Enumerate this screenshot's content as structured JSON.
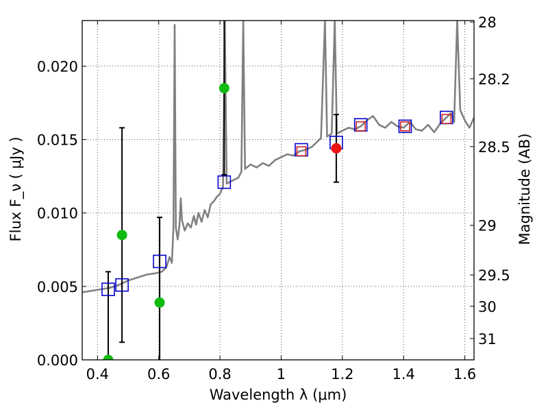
{
  "chart_data": {
    "type": "scatter",
    "xlabel": "Wavelength  λ (μm)",
    "ylabel": "Flux  F_ν  ( μJy )",
    "ylabel_right": "Magnitude (AB)",
    "xlim": [
      0.35,
      1.63
    ],
    "ylim": [
      0.0,
      0.0231
    ],
    "x_ticks": [
      0.4,
      0.6,
      0.8,
      1.0,
      1.2,
      1.4,
      1.6
    ],
    "x_tick_labels": [
      "0.4",
      "0.6",
      "0.8",
      "1",
      "1.2",
      "1.4",
      "1.6"
    ],
    "y_ticks": [
      0.0,
      0.005,
      0.01,
      0.015,
      0.02
    ],
    "y_tick_labels": [
      "0.000",
      "0.005",
      "0.010",
      "0.015",
      "0.020"
    ],
    "right_ticks": [
      {
        "label": "28",
        "flux": 0.023
      },
      {
        "label": "28.2",
        "flux": 0.01914
      },
      {
        "label": "28.5",
        "flux": 0.01452
      },
      {
        "label": "29",
        "flux": 0.00916
      },
      {
        "label": "29.5",
        "flux": 0.00578
      },
      {
        "label": "30",
        "flux": 0.00365
      },
      {
        "label": "31",
        "flux": 0.00145
      }
    ],
    "grid": true,
    "series": [
      {
        "name": "SED template",
        "kind": "line",
        "color": "#808080",
        "points": [
          [
            0.35,
            0.0046
          ],
          [
            0.38,
            0.0047
          ],
          [
            0.41,
            0.0048
          ],
          [
            0.44,
            0.0049
          ],
          [
            0.47,
            0.0051
          ],
          [
            0.5,
            0.0054
          ],
          [
            0.53,
            0.0056
          ],
          [
            0.56,
            0.0058
          ],
          [
            0.59,
            0.0059
          ],
          [
            0.61,
            0.006
          ],
          [
            0.625,
            0.0063
          ],
          [
            0.635,
            0.007
          ],
          [
            0.643,
            0.0066
          ],
          [
            0.648,
            0.009
          ],
          [
            0.652,
            0.0228
          ],
          [
            0.656,
            0.009
          ],
          [
            0.662,
            0.0082
          ],
          [
            0.668,
            0.0092
          ],
          [
            0.672,
            0.011
          ],
          [
            0.676,
            0.0095
          ],
          [
            0.685,
            0.0088
          ],
          [
            0.695,
            0.0093
          ],
          [
            0.705,
            0.009
          ],
          [
            0.715,
            0.0098
          ],
          [
            0.722,
            0.0092
          ],
          [
            0.73,
            0.01
          ],
          [
            0.74,
            0.0094
          ],
          [
            0.75,
            0.0102
          ],
          [
            0.76,
            0.0097
          ],
          [
            0.77,
            0.0106
          ],
          [
            0.78,
            0.0108
          ],
          [
            0.79,
            0.0111
          ],
          [
            0.8,
            0.0113
          ],
          [
            0.81,
            0.0118
          ],
          [
            0.816,
            0.0231
          ],
          [
            0.822,
            0.012
          ],
          [
            0.84,
            0.0122
          ],
          [
            0.86,
            0.0124
          ],
          [
            0.87,
            0.0128
          ],
          [
            0.876,
            0.0231
          ],
          [
            0.882,
            0.013
          ],
          [
            0.9,
            0.0133
          ],
          [
            0.92,
            0.0131
          ],
          [
            0.94,
            0.0134
          ],
          [
            0.96,
            0.0132
          ],
          [
            0.98,
            0.0136
          ],
          [
            1.0,
            0.0138
          ],
          [
            1.02,
            0.014
          ],
          [
            1.04,
            0.0139
          ],
          [
            1.06,
            0.0142
          ],
          [
            1.08,
            0.0143
          ],
          [
            1.1,
            0.0145
          ],
          [
            1.115,
            0.0148
          ],
          [
            1.13,
            0.0151
          ],
          [
            1.143,
            0.0231
          ],
          [
            1.15,
            0.0152
          ],
          [
            1.165,
            0.0154
          ],
          [
            1.175,
            0.0231
          ],
          [
            1.182,
            0.0154
          ],
          [
            1.2,
            0.0156
          ],
          [
            1.22,
            0.0158
          ],
          [
            1.24,
            0.0157
          ],
          [
            1.26,
            0.0159
          ],
          [
            1.28,
            0.0163
          ],
          [
            1.3,
            0.0166
          ],
          [
            1.32,
            0.016
          ],
          [
            1.34,
            0.0158
          ],
          [
            1.36,
            0.0162
          ],
          [
            1.38,
            0.0159
          ],
          [
            1.4,
            0.0158
          ],
          [
            1.42,
            0.0162
          ],
          [
            1.44,
            0.0157
          ],
          [
            1.46,
            0.0156
          ],
          [
            1.48,
            0.016
          ],
          [
            1.5,
            0.0155
          ],
          [
            1.52,
            0.0161
          ],
          [
            1.54,
            0.0165
          ],
          [
            1.555,
            0.0168
          ],
          [
            1.565,
            0.0162
          ],
          [
            1.575,
            0.0231
          ],
          [
            1.585,
            0.017
          ],
          [
            1.6,
            0.0163
          ],
          [
            1.615,
            0.0158
          ],
          [
            1.63,
            0.0165
          ]
        ]
      },
      {
        "name": "Observed flux",
        "kind": "circle",
        "color": "#11bb11",
        "points": [
          {
            "x": 0.435,
            "y": 0.0,
            "err_lo": 0.0,
            "err_hi": 0.006
          },
          {
            "x": 0.48,
            "y": 0.0085,
            "err_lo": 0.0012,
            "err_hi": 0.0158
          },
          {
            "x": 0.603,
            "y": 0.0039,
            "err_lo": 0.0,
            "err_hi": 0.0097
          },
          {
            "x": 0.814,
            "y": 0.0185,
            "err_lo": 0.0126,
            "err_hi": 0.0231
          }
        ]
      },
      {
        "name": "Observed flux (red)",
        "kind": "circle",
        "color": "#ee1111",
        "points": [
          {
            "x": 1.18,
            "y": 0.0144,
            "err_lo": 0.0121,
            "err_hi": 0.0167
          }
        ]
      },
      {
        "name": "Model photometry",
        "kind": "square",
        "color": "#0000cc",
        "points": [
          {
            "x": 0.435,
            "y": 0.0048
          },
          {
            "x": 0.48,
            "y": 0.0051
          },
          {
            "x": 0.603,
            "y": 0.0067
          },
          {
            "x": 0.814,
            "y": 0.0121
          },
          {
            "x": 1.066,
            "y": 0.0143
          },
          {
            "x": 1.18,
            "y": 0.0148
          },
          {
            "x": 1.26,
            "y": 0.016
          },
          {
            "x": 1.405,
            "y": 0.0159
          },
          {
            "x": 1.54,
            "y": 0.0165
          }
        ]
      },
      {
        "name": "Model photometry (red)",
        "kind": "square",
        "color": "#cc2222",
        "points": [
          {
            "x": 1.066,
            "y": 0.0142
          },
          {
            "x": 1.26,
            "y": 0.0159
          },
          {
            "x": 1.405,
            "y": 0.0159
          },
          {
            "x": 1.54,
            "y": 0.0164
          }
        ]
      }
    ]
  }
}
